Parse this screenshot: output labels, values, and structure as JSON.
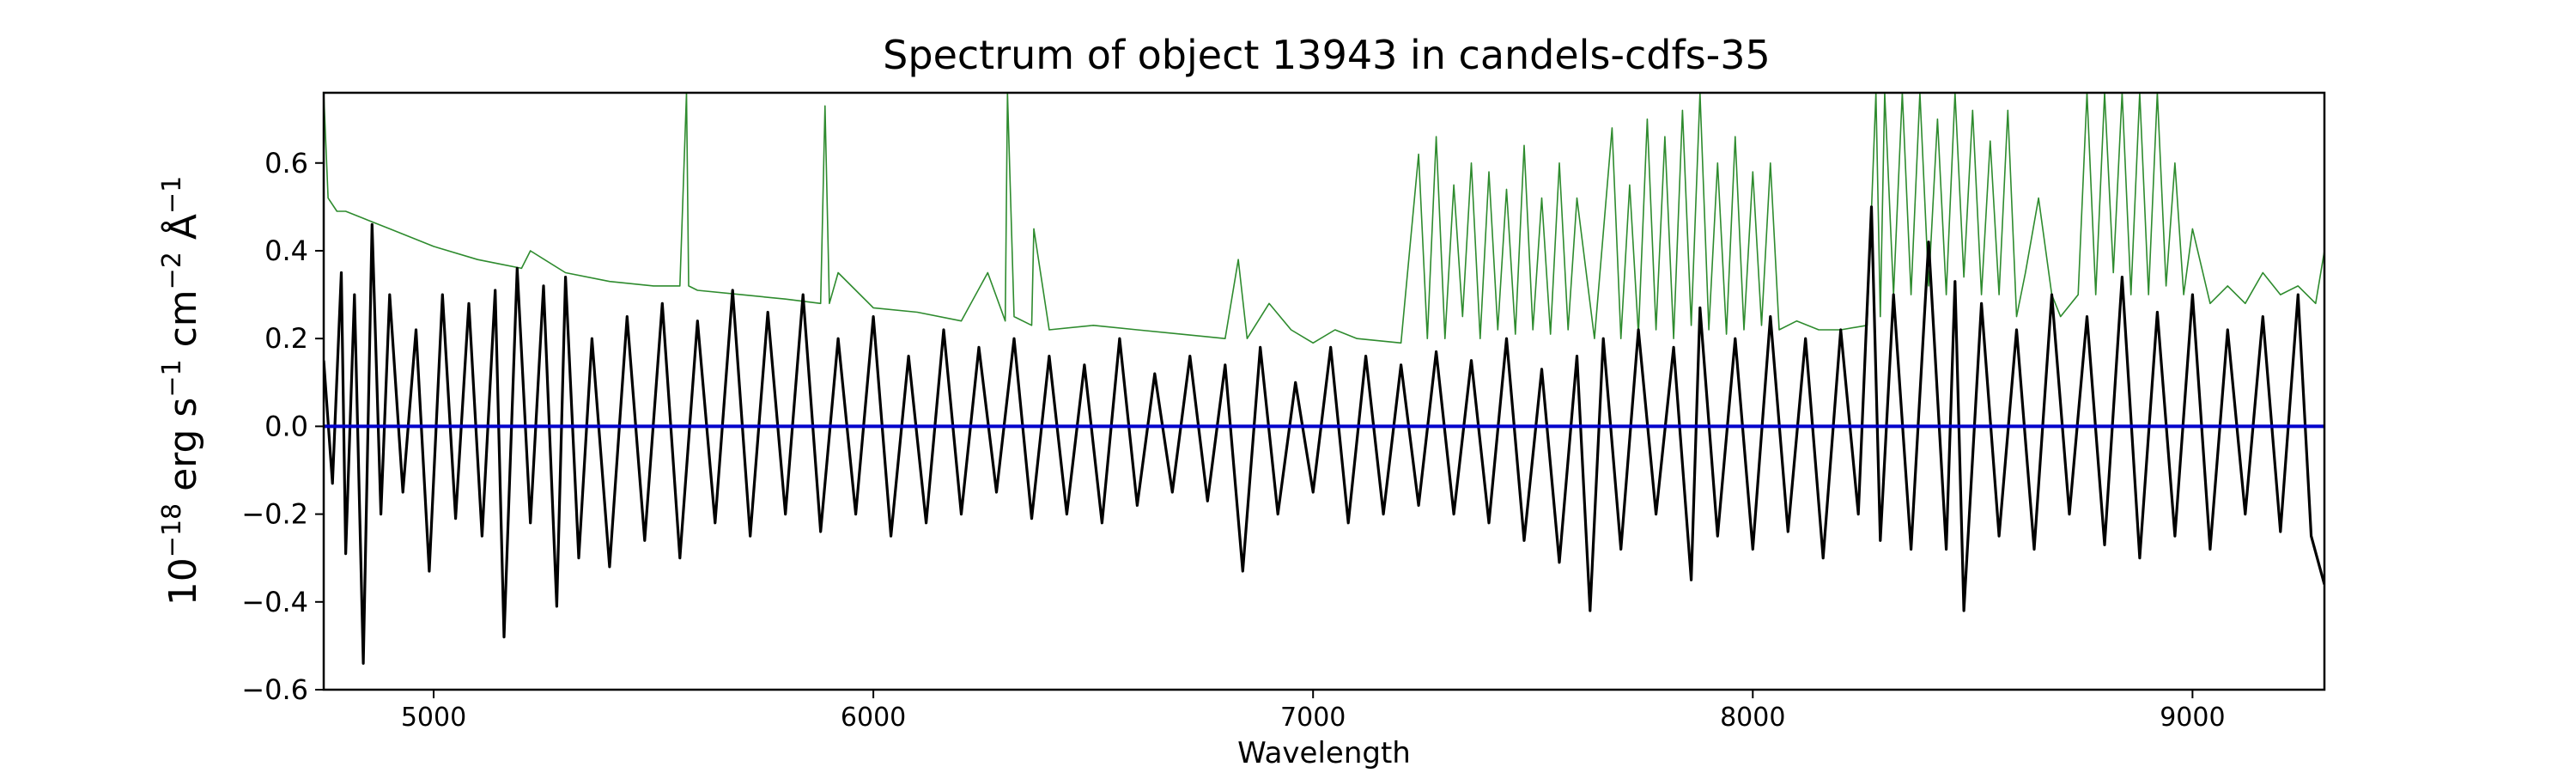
{
  "chart_data": {
    "type": "line",
    "title": "Spectrum of object 13943 in candels-cdfs-35",
    "xlabel": "Wavelength",
    "ylabel_parts": {
      "prefix": "10",
      "prefix_exp": "−18",
      "erg": " erg s",
      "s_exp": "−1",
      "cm": " cm",
      "cm_exp": "−2",
      "angstrom": " Å",
      "a_exp": "−1"
    },
    "xlim": [
      4750,
      9300
    ],
    "ylim": [
      -0.6,
      0.76
    ],
    "xticks": [
      5000,
      6000,
      7000,
      8000,
      9000
    ],
    "xtick_labels": [
      "5000",
      "6000",
      "7000",
      "8000",
      "9000"
    ],
    "yticks": [
      -0.6,
      -0.4,
      -0.2,
      0.0,
      0.2,
      0.4,
      0.6
    ],
    "ytick_labels": [
      "−0.6",
      "−0.4",
      "−0.2",
      "0.0",
      "0.2",
      "0.4",
      "0.6"
    ],
    "grid": false,
    "series": [
      {
        "role": "flux",
        "color": "#000000",
        "x": [
          4750,
          4770,
          4790,
          4800,
          4820,
          4840,
          4860,
          4880,
          4900,
          4930,
          4960,
          4990,
          5020,
          5050,
          5080,
          5110,
          5140,
          5160,
          5190,
          5220,
          5250,
          5280,
          5300,
          5330,
          5360,
          5400,
          5440,
          5480,
          5520,
          5560,
          5600,
          5640,
          5680,
          5720,
          5760,
          5800,
          5840,
          5880,
          5920,
          5960,
          6000,
          6040,
          6080,
          6120,
          6160,
          6200,
          6240,
          6280,
          6320,
          6360,
          6400,
          6440,
          6480,
          6520,
          6560,
          6600,
          6640,
          6680,
          6720,
          6760,
          6800,
          6840,
          6880,
          6920,
          6960,
          7000,
          7040,
          7080,
          7120,
          7160,
          7200,
          7240,
          7280,
          7320,
          7360,
          7400,
          7440,
          7480,
          7520,
          7560,
          7600,
          7630,
          7660,
          7700,
          7740,
          7780,
          7820,
          7860,
          7880,
          7920,
          7960,
          8000,
          8040,
          8080,
          8120,
          8160,
          8200,
          8240,
          8270,
          8290,
          8320,
          8360,
          8400,
          8440,
          8460,
          8480,
          8520,
          8560,
          8600,
          8640,
          8680,
          8720,
          8760,
          8800,
          8840,
          8880,
          8920,
          8960,
          9000,
          9040,
          9080,
          9120,
          9160,
          9200,
          9240,
          9270,
          9300
        ],
        "y": [
          0.15,
          -0.13,
          0.35,
          -0.29,
          0.3,
          -0.54,
          0.46,
          -0.2,
          0.3,
          -0.15,
          0.22,
          -0.33,
          0.3,
          -0.21,
          0.28,
          -0.25,
          0.31,
          -0.48,
          0.36,
          -0.22,
          0.32,
          -0.41,
          0.34,
          -0.3,
          0.2,
          -0.32,
          0.25,
          -0.26,
          0.28,
          -0.3,
          0.24,
          -0.22,
          0.31,
          -0.25,
          0.26,
          -0.2,
          0.3,
          -0.24,
          0.2,
          -0.2,
          0.25,
          -0.25,
          0.16,
          -0.22,
          0.22,
          -0.2,
          0.18,
          -0.15,
          0.2,
          -0.21,
          0.16,
          -0.2,
          0.14,
          -0.22,
          0.2,
          -0.18,
          0.12,
          -0.15,
          0.16,
          -0.17,
          0.14,
          -0.33,
          0.18,
          -0.2,
          0.1,
          -0.15,
          0.18,
          -0.22,
          0.16,
          -0.2,
          0.14,
          -0.18,
          0.17,
          -0.2,
          0.15,
          -0.22,
          0.2,
          -0.26,
          0.13,
          -0.31,
          0.16,
          -0.42,
          0.2,
          -0.28,
          0.22,
          -0.2,
          0.18,
          -0.35,
          0.27,
          -0.25,
          0.2,
          -0.28,
          0.25,
          -0.24,
          0.2,
          -0.3,
          0.22,
          -0.2,
          0.5,
          -0.26,
          0.3,
          -0.28,
          0.42,
          -0.28,
          0.33,
          -0.42,
          0.28,
          -0.25,
          0.22,
          -0.28,
          0.3,
          -0.2,
          0.25,
          -0.27,
          0.34,
          -0.3,
          0.26,
          -0.25,
          0.3,
          -0.28,
          0.22,
          -0.2,
          0.25,
          -0.24,
          0.3,
          -0.25,
          -0.36
        ]
      },
      {
        "role": "error",
        "color": "#2e8b2e",
        "x": [
          4750,
          4760,
          4780,
          4800,
          4850,
          4900,
          5000,
          5100,
          5150,
          5200,
          5220,
          5300,
          5400,
          5500,
          5560,
          5575,
          5580,
          5600,
          5700,
          5800,
          5880,
          5890,
          5900,
          5920,
          6000,
          6100,
          6200,
          6260,
          6300,
          6305,
          6320,
          6360,
          6365,
          6400,
          6500,
          6600,
          6700,
          6800,
          6830,
          6850,
          6900,
          6950,
          7000,
          7050,
          7100,
          7200,
          7240,
          7260,
          7280,
          7300,
          7320,
          7340,
          7360,
          7380,
          7400,
          7420,
          7440,
          7460,
          7480,
          7500,
          7520,
          7540,
          7560,
          7580,
          7600,
          7640,
          7680,
          7700,
          7720,
          7740,
          7760,
          7780,
          7800,
          7820,
          7840,
          7860,
          7880,
          7900,
          7920,
          7940,
          7960,
          7980,
          8000,
          8020,
          8040,
          8060,
          8100,
          8150,
          8200,
          8260,
          8280,
          8290,
          8300,
          8320,
          8340,
          8360,
          8380,
          8400,
          8420,
          8440,
          8460,
          8480,
          8500,
          8520,
          8540,
          8560,
          8580,
          8600,
          8620,
          8650,
          8680,
          8700,
          8740,
          8760,
          8780,
          8800,
          8820,
          8840,
          8860,
          8880,
          8900,
          8920,
          8940,
          8960,
          8980,
          9000,
          9040,
          9080,
          9120,
          9160,
          9200,
          9240,
          9280,
          9300
        ],
        "y": [
          0.76,
          0.52,
          0.49,
          0.49,
          0.47,
          0.45,
          0.41,
          0.38,
          0.37,
          0.36,
          0.4,
          0.35,
          0.33,
          0.32,
          0.32,
          0.76,
          0.32,
          0.31,
          0.3,
          0.29,
          0.28,
          0.73,
          0.28,
          0.35,
          0.27,
          0.26,
          0.24,
          0.35,
          0.24,
          0.76,
          0.25,
          0.23,
          0.45,
          0.22,
          0.23,
          0.22,
          0.21,
          0.2,
          0.38,
          0.2,
          0.28,
          0.22,
          0.19,
          0.22,
          0.2,
          0.19,
          0.62,
          0.2,
          0.66,
          0.2,
          0.55,
          0.25,
          0.6,
          0.2,
          0.58,
          0.22,
          0.54,
          0.21,
          0.64,
          0.22,
          0.52,
          0.21,
          0.6,
          0.22,
          0.52,
          0.2,
          0.68,
          0.2,
          0.55,
          0.21,
          0.7,
          0.22,
          0.66,
          0.2,
          0.72,
          0.23,
          0.76,
          0.22,
          0.6,
          0.21,
          0.66,
          0.22,
          0.58,
          0.23,
          0.6,
          0.22,
          0.24,
          0.22,
          0.22,
          0.23,
          0.76,
          0.25,
          0.76,
          0.3,
          0.76,
          0.3,
          0.76,
          0.32,
          0.7,
          0.3,
          0.76,
          0.34,
          0.72,
          0.3,
          0.65,
          0.3,
          0.72,
          0.25,
          0.35,
          0.52,
          0.3,
          0.25,
          0.3,
          0.76,
          0.3,
          0.76,
          0.35,
          0.76,
          0.3,
          0.76,
          0.3,
          0.76,
          0.32,
          0.6,
          0.3,
          0.45,
          0.28,
          0.32,
          0.28,
          0.35,
          0.3,
          0.32,
          0.28,
          0.4
        ]
      },
      {
        "role": "zero",
        "color": "#0000cc",
        "x": [
          4750,
          9300
        ],
        "y": [
          0.0,
          0.0
        ]
      }
    ]
  }
}
